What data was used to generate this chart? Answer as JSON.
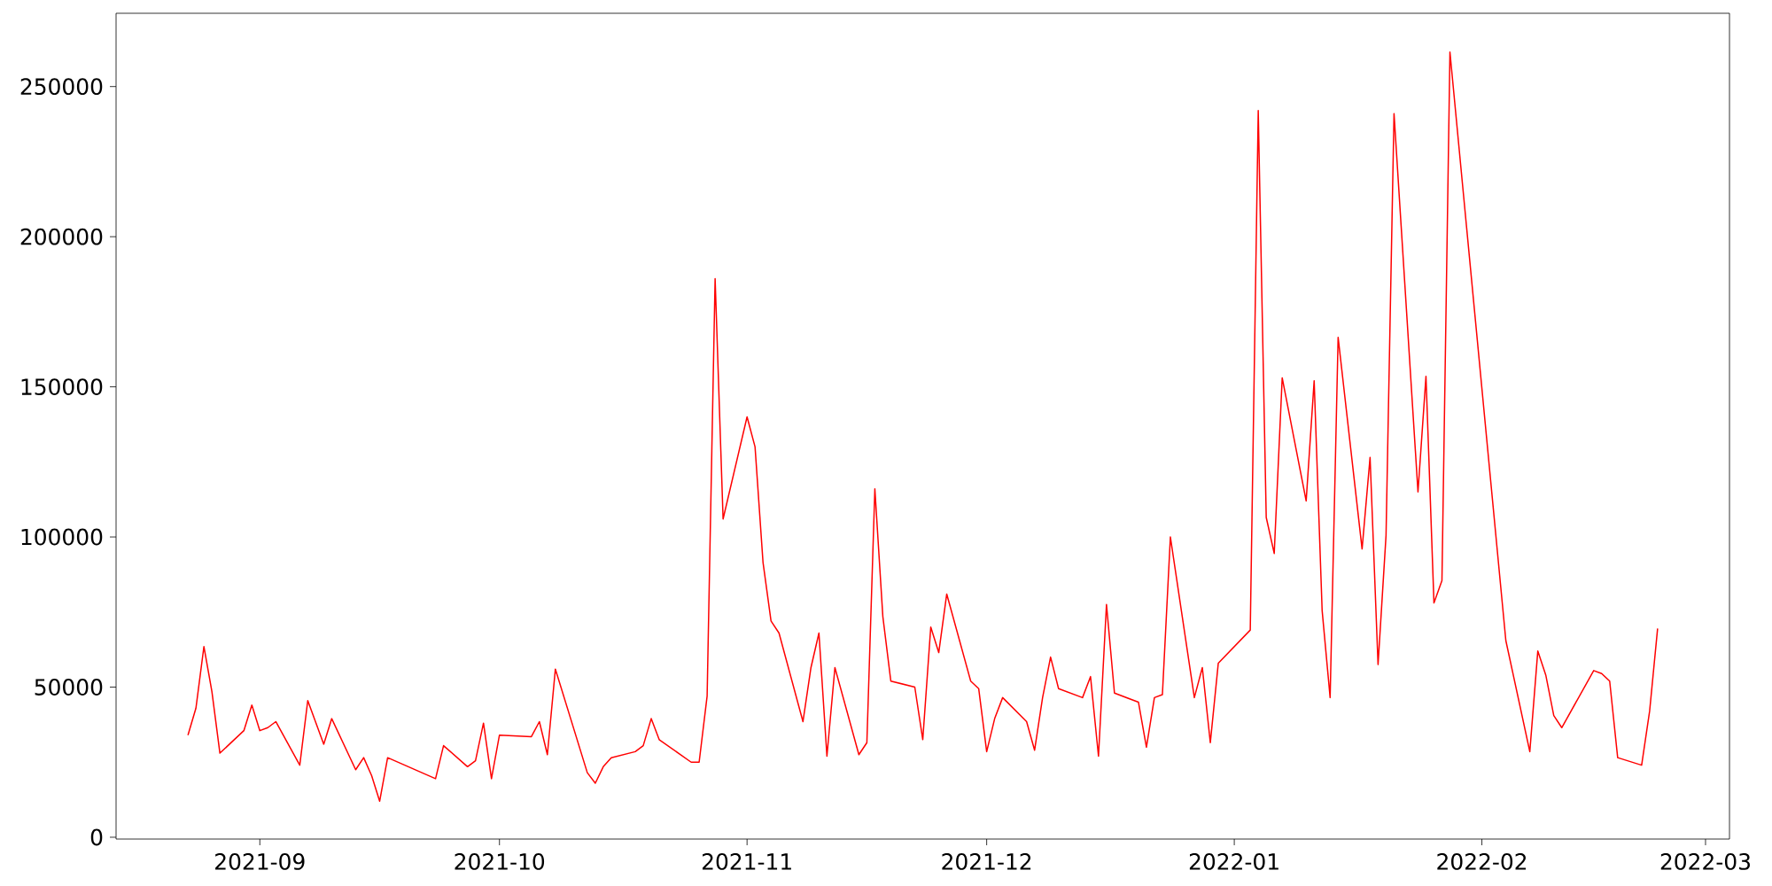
{
  "chart_data": {
    "type": "line",
    "color": "#ff0000",
    "x": [
      "2021-08-23",
      "2021-08-24",
      "2021-08-25",
      "2021-08-26",
      "2021-08-27",
      "2021-08-30",
      "2021-08-31",
      "2021-09-01",
      "2021-09-02",
      "2021-09-03",
      "2021-09-06",
      "2021-09-07",
      "2021-09-09",
      "2021-09-10",
      "2021-09-13",
      "2021-09-14",
      "2021-09-15",
      "2021-09-16",
      "2021-09-17",
      "2021-09-23",
      "2021-09-24",
      "2021-09-27",
      "2021-09-28",
      "2021-09-29",
      "2021-09-30",
      "2021-10-01",
      "2021-10-05",
      "2021-10-06",
      "2021-10-07",
      "2021-10-08",
      "2021-10-12",
      "2021-10-13",
      "2021-10-14",
      "2021-10-15",
      "2021-10-18",
      "2021-10-19",
      "2021-10-20",
      "2021-10-21",
      "2021-10-25",
      "2021-10-26",
      "2021-10-27",
      "2021-10-28",
      "2021-10-29",
      "2021-11-01",
      "2021-11-02",
      "2021-11-03",
      "2021-11-04",
      "2021-11-05",
      "2021-11-08",
      "2021-11-09",
      "2021-11-10",
      "2021-11-11",
      "2021-11-12",
      "2021-11-15",
      "2021-11-16",
      "2021-11-17",
      "2021-11-18",
      "2021-11-19",
      "2021-11-22",
      "2021-11-23",
      "2021-11-24",
      "2021-11-25",
      "2021-11-26",
      "2021-11-29",
      "2021-11-30",
      "2021-12-01",
      "2021-12-02",
      "2021-12-03",
      "2021-12-06",
      "2021-12-07",
      "2021-12-08",
      "2021-12-09",
      "2021-12-10",
      "2021-12-13",
      "2021-12-14",
      "2021-12-15",
      "2021-12-16",
      "2021-12-17",
      "2021-12-20",
      "2021-12-21",
      "2021-12-22",
      "2021-12-23",
      "2021-12-24",
      "2021-12-27",
      "2021-12-28",
      "2021-12-29",
      "2021-12-30",
      "2022-01-03",
      "2022-01-04",
      "2022-01-05",
      "2022-01-06",
      "2022-01-07",
      "2022-01-10",
      "2022-01-11",
      "2022-01-12",
      "2022-01-13",
      "2022-01-14",
      "2022-01-17",
      "2022-01-18",
      "2022-01-19",
      "2022-01-20",
      "2022-01-21",
      "2022-01-24",
      "2022-01-25",
      "2022-01-26",
      "2022-01-27",
      "2022-01-28",
      "2022-02-04",
      "2022-02-07",
      "2022-02-08",
      "2022-02-09",
      "2022-02-10",
      "2022-02-11",
      "2022-02-15",
      "2022-02-16",
      "2022-02-17",
      "2022-02-18",
      "2022-02-21",
      "2022-02-22",
      "2022-02-23"
    ],
    "values": [
      34000,
      43000,
      63500,
      48500,
      28000,
      35500,
      44000,
      35500,
      36500,
      38500,
      24000,
      45500,
      31000,
      39500,
      22500,
      26500,
      20500,
      12000,
      26500,
      19500,
      30500,
      23500,
      25500,
      38000,
      19500,
      34000,
      33500,
      38500,
      27500,
      56000,
      21500,
      18000,
      23500,
      26500,
      28500,
      30500,
      39500,
      32500,
      25000,
      25000,
      47000,
      186000,
      106000,
      140000,
      130000,
      91500,
      72000,
      68000,
      38500,
      56500,
      68000,
      27000,
      56500,
      27500,
      31500,
      116000,
      73500,
      52000,
      50000,
      32500,
      70000,
      61500,
      81000,
      52000,
      49500,
      28500,
      39500,
      46500,
      38500,
      29000,
      46500,
      60000,
      49500,
      46500,
      53500,
      27000,
      77500,
      48000,
      45000,
      30000,
      46500,
      47500,
      100000,
      46500,
      56500,
      31500,
      58000,
      69000,
      242000,
      106500,
      94500,
      153000,
      112000,
      152000,
      75500,
      46500,
      166500,
      96000,
      126500,
      57500,
      100500,
      241000,
      115000,
      153500,
      78000,
      85500,
      261500,
      65500,
      28500,
      62000,
      54000,
      40500,
      36500,
      55500,
      54500,
      52000,
      26500,
      24000,
      42000,
      69500
    ],
    "xlim": [
      "2021-08-14",
      "2022-03-04"
    ],
    "ylim": [
      -600,
      274400
    ],
    "xticks": [
      {
        "value": "2021-09-01",
        "label": "2021-09"
      },
      {
        "value": "2021-10-01",
        "label": "2021-10"
      },
      {
        "value": "2021-11-01",
        "label": "2021-11"
      },
      {
        "value": "2021-12-01",
        "label": "2021-12"
      },
      {
        "value": "2022-01-01",
        "label": "2022-01"
      },
      {
        "value": "2022-02-01",
        "label": "2022-02"
      },
      {
        "value": "2022-03-01",
        "label": "2022-03"
      }
    ],
    "yticks": [
      0,
      50000,
      100000,
      150000,
      200000,
      250000
    ]
  }
}
